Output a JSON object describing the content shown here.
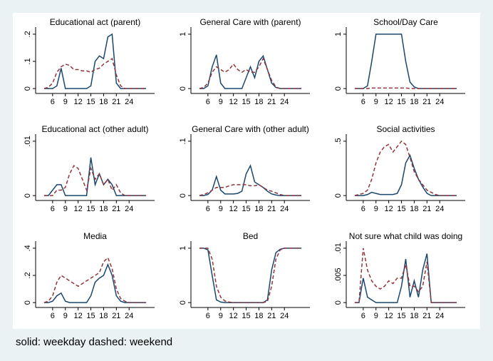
{
  "chart_data": [
    {
      "type": "line",
      "title": "Educational act (parent)",
      "x": [
        4,
        5,
        6,
        7,
        8,
        9,
        10,
        11,
        12,
        13,
        14,
        15,
        16,
        17,
        18,
        19,
        20,
        21,
        22,
        23,
        24,
        25,
        26,
        27,
        28
      ],
      "xlim": [
        2,
        30
      ],
      "xticks": [
        6,
        9,
        12,
        15,
        18,
        21,
        24
      ],
      "ylim": [
        -0.018,
        0.226
      ],
      "yticks": [
        0,
        {
          "value": 0.1,
          "label": ".1"
        },
        {
          "value": 0.2,
          "label": ".2"
        }
      ],
      "series": [
        {
          "color": "#1a476f",
          "dash": false,
          "values": [
            0,
            0,
            0,
            0.01,
            0.075,
            0,
            0,
            0,
            0,
            0,
            0,
            0.01,
            0.1,
            0.12,
            0.11,
            0.19,
            0.2,
            0.02,
            0,
            0,
            0,
            0,
            0,
            0,
            0
          ]
        },
        {
          "color": "#90353b",
          "dash": true,
          "values": [
            0,
            0.005,
            0.02,
            0.06,
            0.08,
            0.09,
            0.085,
            0.07,
            0.07,
            0.065,
            0.065,
            0.06,
            0.07,
            0.075,
            0.09,
            0.1,
            0.11,
            0.05,
            0.01,
            0,
            0,
            0,
            0,
            0,
            0
          ]
        }
      ]
    },
    {
      "type": "line",
      "title": "General Care with (parent)",
      "x": [
        4,
        5,
        6,
        7,
        8,
        9,
        10,
        11,
        12,
        13,
        14,
        15,
        16,
        17,
        18,
        19,
        20,
        21,
        22,
        23,
        24,
        25,
        26,
        27,
        28
      ],
      "xlim": [
        2,
        30
      ],
      "xticks": [
        6,
        9,
        12,
        15,
        18,
        21,
        24
      ],
      "ylim": [
        -0.09,
        1.13
      ],
      "yticks": [
        0,
        1
      ],
      "series": [
        {
          "color": "#1a476f",
          "dash": false,
          "values": [
            0,
            0,
            0.05,
            0.4,
            0.62,
            0.1,
            0,
            0,
            0,
            0,
            0,
            0.2,
            0.4,
            0.2,
            0.5,
            0.6,
            0.35,
            0.1,
            0.02,
            0,
            0,
            0,
            0,
            0,
            0
          ]
        },
        {
          "color": "#90353b",
          "dash": true,
          "values": [
            0,
            0.02,
            0.1,
            0.3,
            0.4,
            0.35,
            0.3,
            0.35,
            0.45,
            0.35,
            0.3,
            0.35,
            0.3,
            0.3,
            0.4,
            0.55,
            0.35,
            0.15,
            0.03,
            0,
            0,
            0,
            0,
            0,
            0
          ]
        }
      ]
    },
    {
      "type": "line",
      "title": "School/Day Care",
      "x": [
        4,
        5,
        6,
        7,
        8,
        9,
        10,
        11,
        12,
        13,
        14,
        15,
        16,
        17,
        18,
        19,
        20,
        21,
        22,
        23,
        24,
        25,
        26,
        27,
        28
      ],
      "xlim": [
        2,
        30
      ],
      "xticks": [
        6,
        9,
        12,
        15,
        18,
        21,
        24
      ],
      "ylim": [
        -0.09,
        1.13
      ],
      "yticks": [
        0,
        1
      ],
      "series": [
        {
          "color": "#1a476f",
          "dash": false,
          "values": [
            0,
            0,
            0,
            0.05,
            0.5,
            1,
            1,
            1,
            1,
            1,
            1,
            1,
            0.5,
            0.12,
            0.03,
            0,
            0,
            0,
            0,
            0,
            0,
            0,
            0,
            0,
            0
          ]
        },
        {
          "color": "#90353b",
          "dash": true,
          "values": [
            0,
            0,
            0,
            0,
            0.01,
            0.01,
            0.01,
            0.01,
            0.01,
            0.01,
            0.01,
            0.01,
            0.01,
            0,
            0,
            0,
            0,
            0,
            0,
            0,
            0,
            0,
            0,
            0,
            0
          ]
        }
      ]
    },
    {
      "type": "line",
      "title": "Educational act (other adult)",
      "x": [
        4,
        5,
        6,
        7,
        8,
        9,
        10,
        11,
        12,
        13,
        14,
        15,
        16,
        17,
        18,
        19,
        20,
        21,
        22,
        23,
        24,
        25,
        26,
        27,
        28
      ],
      "xlim": [
        2,
        30
      ],
      "xticks": [
        6,
        9,
        12,
        15,
        18,
        21,
        24
      ],
      "ylim": [
        -0.0009,
        0.0113
      ],
      "yticks": [
        0,
        {
          "value": 0.01,
          "label": ".01"
        }
      ],
      "series": [
        {
          "color": "#1a476f",
          "dash": false,
          "values": [
            0,
            0,
            0.001,
            0.002,
            0.002,
            0,
            0,
            0,
            0,
            0,
            0,
            0.007,
            0.002,
            0.004,
            0.002,
            0.003,
            0.002,
            0,
            0,
            0,
            0,
            0,
            0,
            0,
            0
          ]
        },
        {
          "color": "#90353b",
          "dash": true,
          "values": [
            0,
            0,
            0,
            0.001,
            0.001,
            0.0015,
            0.004,
            0.0055,
            0.005,
            0.003,
            0.001,
            0.005,
            0.003,
            0.004,
            0.002,
            0.003,
            0.001,
            0.002,
            0.0005,
            0,
            0,
            0,
            0,
            0,
            0
          ]
        }
      ]
    },
    {
      "type": "line",
      "title": "General Care with (other adult)",
      "x": [
        4,
        5,
        6,
        7,
        8,
        9,
        10,
        11,
        12,
        13,
        14,
        15,
        16,
        17,
        18,
        19,
        20,
        21,
        22,
        23,
        24,
        25,
        26,
        27,
        28
      ],
      "xlim": [
        2,
        30
      ],
      "xticks": [
        6,
        9,
        12,
        15,
        18,
        21,
        24
      ],
      "ylim": [
        -0.009,
        0.113
      ],
      "yticks": [
        0,
        {
          "value": 0.1,
          "label": ".1"
        }
      ],
      "series": [
        {
          "color": "#1a476f",
          "dash": false,
          "values": [
            0,
            0,
            0.002,
            0.01,
            0.035,
            0.01,
            0.003,
            0.003,
            0.003,
            0.004,
            0.008,
            0.04,
            0.055,
            0.025,
            0.02,
            0.015,
            0.008,
            0.003,
            0.001,
            0,
            0,
            0,
            0,
            0,
            0
          ]
        },
        {
          "color": "#90353b",
          "dash": true,
          "values": [
            0,
            0.002,
            0.005,
            0.01,
            0.015,
            0.015,
            0.015,
            0.018,
            0.02,
            0.02,
            0.02,
            0.02,
            0.018,
            0.018,
            0.02,
            0.015,
            0.01,
            0.008,
            0.005,
            0.002,
            0,
            0,
            0,
            0,
            0
          ]
        }
      ]
    },
    {
      "type": "line",
      "title": "Social activities",
      "x": [
        4,
        5,
        6,
        7,
        8,
        9,
        10,
        11,
        12,
        13,
        14,
        15,
        16,
        17,
        18,
        19,
        20,
        21,
        22,
        23,
        24,
        25,
        26,
        27,
        28
      ],
      "xlim": [
        2,
        30
      ],
      "xticks": [
        6,
        9,
        12,
        15,
        18,
        21,
        24
      ],
      "ylim": [
        -0.045,
        0.565
      ],
      "yticks": [
        0,
        {
          "value": 0.5,
          "label": ".5"
        }
      ],
      "series": [
        {
          "color": "#1a476f",
          "dash": false,
          "values": [
            0,
            0,
            0,
            0.01,
            0.03,
            0.02,
            0.01,
            0.01,
            0.01,
            0.01,
            0.02,
            0.1,
            0.3,
            0.37,
            0.25,
            0.15,
            0.08,
            0.02,
            0,
            0,
            0,
            0,
            0,
            0,
            0
          ]
        },
        {
          "color": "#90353b",
          "dash": true,
          "values": [
            0,
            0.01,
            0.02,
            0.05,
            0.15,
            0.3,
            0.4,
            0.45,
            0.47,
            0.4,
            0.45,
            0.5,
            0.47,
            0.35,
            0.22,
            0.15,
            0.1,
            0.05,
            0.03,
            0.01,
            0,
            0,
            0,
            0,
            0
          ]
        }
      ]
    },
    {
      "type": "line",
      "title": "Media",
      "x": [
        4,
        5,
        6,
        7,
        8,
        9,
        10,
        11,
        12,
        13,
        14,
        15,
        16,
        17,
        18,
        19,
        20,
        21,
        22,
        23,
        24,
        25,
        26,
        27,
        28
      ],
      "xlim": [
        2,
        30
      ],
      "xticks": [
        6,
        9,
        12,
        15,
        18,
        21,
        24
      ],
      "ylim": [
        -0.036,
        0.452
      ],
      "yticks": [
        0,
        {
          "value": 0.2,
          "label": ".2"
        },
        {
          "value": 0.4,
          "label": ".4"
        }
      ],
      "series": [
        {
          "color": "#1a476f",
          "dash": false,
          "values": [
            0,
            0,
            0.01,
            0.05,
            0.07,
            0.01,
            0,
            0,
            0,
            0,
            0,
            0.05,
            0.15,
            0.18,
            0.2,
            0.28,
            0.2,
            0.05,
            0.01,
            0,
            0,
            0,
            0,
            0,
            0
          ]
        },
        {
          "color": "#90353b",
          "dash": true,
          "values": [
            0,
            0.01,
            0.05,
            0.15,
            0.2,
            0.18,
            0.16,
            0.14,
            0.12,
            0.14,
            0.16,
            0.18,
            0.2,
            0.22,
            0.3,
            0.33,
            0.25,
            0.1,
            0.03,
            0.01,
            0,
            0,
            0,
            0,
            0
          ]
        }
      ]
    },
    {
      "type": "line",
      "title": "Bed",
      "x": [
        4,
        5,
        6,
        7,
        8,
        9,
        10,
        11,
        12,
        13,
        14,
        15,
        16,
        17,
        18,
        19,
        20,
        21,
        22,
        23,
        24,
        25,
        26,
        27,
        28
      ],
      "xlim": [
        2,
        30
      ],
      "xticks": [
        6,
        9,
        12,
        15,
        18,
        21,
        24
      ],
      "ylim": [
        -0.09,
        1.13
      ],
      "yticks": [
        0,
        1
      ],
      "series": [
        {
          "color": "#1a476f",
          "dash": false,
          "values": [
            1,
            1,
            0.97,
            0.5,
            0.05,
            0.01,
            0,
            0,
            0,
            0,
            0,
            0,
            0,
            0,
            0,
            0,
            0.05,
            0.6,
            0.92,
            0.98,
            1,
            1,
            1,
            1,
            1
          ]
        },
        {
          "color": "#90353b",
          "dash": true,
          "values": [
            1,
            1,
            1,
            0.8,
            0.3,
            0.1,
            0.03,
            0.01,
            0,
            0,
            0,
            0,
            0,
            0,
            0,
            0,
            0.02,
            0.3,
            0.8,
            0.97,
            1,
            1,
            1,
            1,
            1
          ]
        }
      ]
    },
    {
      "type": "line",
      "title": "Not sure what child was doing",
      "x": [
        4,
        5,
        6,
        7,
        8,
        9,
        10,
        11,
        12,
        13,
        14,
        15,
        16,
        17,
        18,
        19,
        20,
        21,
        22,
        23,
        24,
        25,
        26,
        27,
        28
      ],
      "xlim": [
        2,
        30
      ],
      "xticks": [
        6,
        9,
        12,
        15,
        18,
        21,
        24
      ],
      "ylim": [
        -0.0009,
        0.0113
      ],
      "yticks": [
        0,
        {
          "value": 0.005,
          "label": ".005"
        },
        {
          "value": 0.01,
          "label": ".01"
        }
      ],
      "series": [
        {
          "color": "#1a476f",
          "dash": false,
          "values": [
            0,
            0,
            0.0045,
            0.001,
            0.0005,
            0,
            0,
            0,
            0,
            0,
            0,
            0.003,
            0.008,
            0.001,
            0.004,
            0.001,
            0.006,
            0.009,
            0,
            0,
            0,
            0,
            0,
            0,
            0
          ]
        },
        {
          "color": "#90353b",
          "dash": true,
          "values": [
            0,
            0,
            0.01,
            0.006,
            0.004,
            0.003,
            0.0025,
            0.003,
            0.004,
            0.0035,
            0.0045,
            0.0045,
            0.007,
            0.003,
            0.003,
            0.002,
            0.003,
            0.0075,
            0,
            0,
            0,
            0,
            0,
            0,
            0
          ]
        }
      ]
    }
  ],
  "note": "solid: weekday dashed: weekend"
}
